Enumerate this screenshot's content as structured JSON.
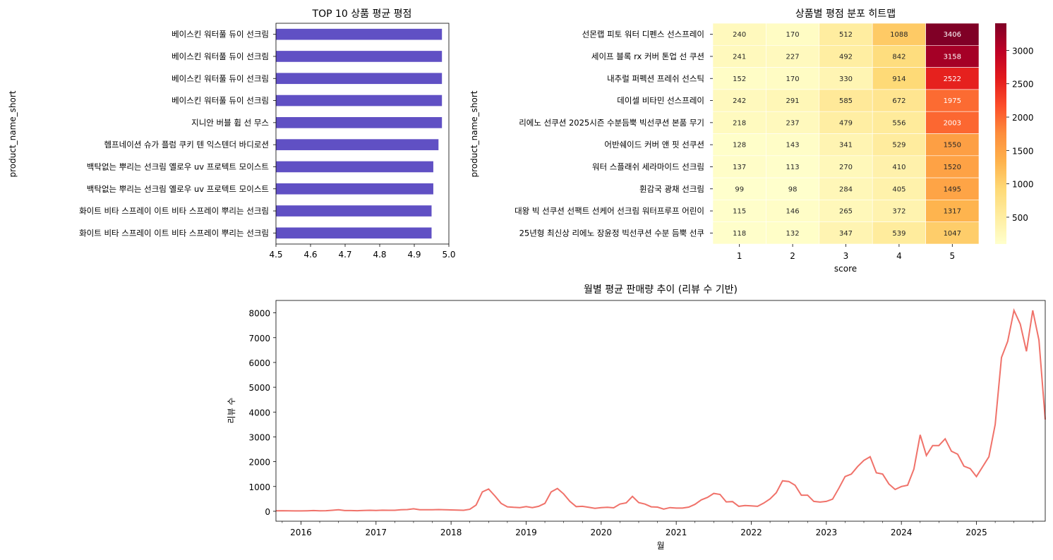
{
  "chart_data": [
    {
      "type": "bar",
      "orientation": "horizontal",
      "title": "TOP 10 상품 평균 평점",
      "xlabel": "",
      "ylabel": "product_name_short",
      "xlim": [
        4.5,
        5.0
      ],
      "xticks": [
        "4.5",
        "4.6",
        "4.7",
        "4.8",
        "4.9",
        "5.0"
      ],
      "color": "#6050c4",
      "categories": [
        "베이스킨 워터풀 듀이 선크림",
        "베이스킨 워터풀 듀이 선크림",
        "베이스킨 워터풀 듀이 선크림",
        "베이스킨 워터풀 듀이 선크림",
        "지니안 버블 휩 선 무스",
        "헴프네이션 슈가 플럼 쿠키 텐 익스텐더 바디로션",
        "백탁없는 뿌리는 선크림 옐로우 uv 프로텍트 모이스트",
        "백탁없는 뿌리는 선크림 옐로우 uv 프로텍트 모이스트",
        "화이트 비타 스프레이 이트 비타 스프레이 뿌리는 선크림",
        "화이트 비타 스프레이 이트 비타 스프레이 뿌리는 선크림"
      ],
      "values": [
        4.98,
        4.98,
        4.98,
        4.98,
        4.98,
        4.97,
        4.955,
        4.955,
        4.95,
        4.95
      ]
    },
    {
      "type": "heatmap",
      "title": "상품별 평점 분포 히트맵",
      "xlabel": "score",
      "ylabel": "product_name_short",
      "colorscale": "YlOrRd",
      "vmin": 98,
      "vmax": 3406,
      "colorbar_ticks": [
        "500",
        "1000",
        "1500",
        "2000",
        "2500",
        "3000"
      ],
      "x": [
        "1",
        "2",
        "3",
        "4",
        "5"
      ],
      "y": [
        "선몬랩 피토 워터 디펜스 선스프레이",
        "세이프 블록 rx 커버 톤업 선 쿠션",
        "내추럴 퍼펙션 프레쉬 선스틱",
        "데이셀 비타민 선스프레이",
        "리에노 선쿠션 2025시즌 수분듬뿍 빅선쿠션 본품 무기",
        "어반쉐이드 커버 앤 핏 선쿠션",
        "워터 스플래쉬 세라마이드 선크림",
        "휜감국 광채 선크림",
        "대왕 빅 선쿠션 선팩트 선케어 선크림 워터프루프 어린이",
        "25년형 최신상 리에노 장윤정 빅선쿠션 수분 듬뿍 선쿠"
      ],
      "values": [
        [
          240,
          170,
          512,
          1088,
          3406
        ],
        [
          241,
          227,
          492,
          842,
          3158
        ],
        [
          152,
          170,
          330,
          914,
          2522
        ],
        [
          242,
          291,
          585,
          672,
          1975
        ],
        [
          218,
          237,
          479,
          556,
          2003
        ],
        [
          128,
          143,
          341,
          529,
          1550
        ],
        [
          137,
          113,
          270,
          410,
          1520
        ],
        [
          99,
          98,
          284,
          405,
          1495
        ],
        [
          115,
          146,
          265,
          372,
          1317
        ],
        [
          118,
          132,
          347,
          539,
          1047
        ]
      ]
    },
    {
      "type": "line",
      "title": "월별 평균 판매량 추이 (리뷰 수 기반)",
      "xlabel": "월",
      "ylabel": "리뷰 수",
      "color": "#f0726a",
      "x_start": "2015-09",
      "x_end": "2025-12",
      "ylim": [
        -400,
        8500
      ],
      "yticks": [
        "0",
        "1000",
        "2000",
        "3000",
        "4000",
        "5000",
        "6000",
        "7000",
        "8000"
      ],
      "xticks": [
        "2016",
        "2017",
        "2018",
        "2019",
        "2020",
        "2021",
        "2022",
        "2023",
        "2024",
        "2025"
      ],
      "x": [
        "2015-09",
        "2015-10",
        "2015-11",
        "2015-12",
        "2016-01",
        "2016-02",
        "2016-03",
        "2016-04",
        "2016-05",
        "2016-06",
        "2016-07",
        "2016-08",
        "2016-09",
        "2016-10",
        "2016-11",
        "2016-12",
        "2017-01",
        "2017-02",
        "2017-03",
        "2017-04",
        "2017-05",
        "2017-06",
        "2017-07",
        "2017-08",
        "2017-09",
        "2017-10",
        "2017-11",
        "2017-12",
        "2018-01",
        "2018-02",
        "2018-03",
        "2018-04",
        "2018-05",
        "2018-06",
        "2018-07",
        "2018-08",
        "2018-09",
        "2018-10",
        "2018-11",
        "2018-12",
        "2019-01",
        "2019-02",
        "2019-03",
        "2019-04",
        "2019-05",
        "2019-06",
        "2019-07",
        "2019-08",
        "2019-09",
        "2019-10",
        "2019-11",
        "2019-12",
        "2020-01",
        "2020-02",
        "2020-03",
        "2020-04",
        "2020-05",
        "2020-06",
        "2020-07",
        "2020-08",
        "2020-09",
        "2020-10",
        "2020-11",
        "2020-12",
        "2021-01",
        "2021-02",
        "2021-03",
        "2021-04",
        "2021-05",
        "2021-06",
        "2021-07",
        "2021-08",
        "2021-09",
        "2021-10",
        "2021-11",
        "2021-12",
        "2022-01",
        "2022-02",
        "2022-03",
        "2022-04",
        "2022-05",
        "2022-06",
        "2022-07",
        "2022-08",
        "2022-09",
        "2022-10",
        "2022-11",
        "2022-12",
        "2023-01",
        "2023-02",
        "2023-03",
        "2023-04",
        "2023-05",
        "2023-06",
        "2023-07",
        "2023-08",
        "2023-09",
        "2023-10",
        "2023-11",
        "2023-12",
        "2024-01",
        "2024-02",
        "2024-03",
        "2024-04",
        "2024-05",
        "2024-06",
        "2024-07",
        "2024-08",
        "2024-09",
        "2024-10",
        "2024-11",
        "2024-12",
        "2025-01",
        "2025-02",
        "2025-03",
        "2025-04",
        "2025-05",
        "2025-06",
        "2025-07",
        "2025-08",
        "2025-09",
        "2025-10",
        "2025-11",
        "2025-12"
      ],
      "y": [
        20,
        25,
        20,
        15,
        15,
        20,
        30,
        20,
        25,
        40,
        60,
        30,
        30,
        25,
        35,
        40,
        35,
        45,
        40,
        40,
        60,
        70,
        100,
        60,
        60,
        60,
        70,
        60,
        55,
        50,
        40,
        80,
        250,
        780,
        900,
        620,
        320,
        180,
        160,
        150,
        190,
        150,
        200,
        320,
        780,
        920,
        700,
        400,
        190,
        200,
        160,
        120,
        150,
        160,
        140,
        290,
        340,
        600,
        350,
        290,
        180,
        170,
        90,
        150,
        130,
        130,
        170,
        280,
        460,
        560,
        720,
        680,
        380,
        390,
        200,
        230,
        220,
        200,
        330,
        500,
        750,
        1230,
        1200,
        1050,
        650,
        650,
        400,
        370,
        400,
        490,
        930,
        1400,
        1500,
        1800,
        2050,
        2200,
        1550,
        1500,
        1100,
        880,
        1000,
        1050,
        1700,
        3080,
        2250,
        2650,
        2650,
        2920,
        2420,
        2300,
        1820,
        1720,
        1400,
        1800,
        2200,
        3500,
        6200,
        6850,
        8100,
        7550,
        6450,
        8100,
        6900,
        3700
      ]
    }
  ]
}
